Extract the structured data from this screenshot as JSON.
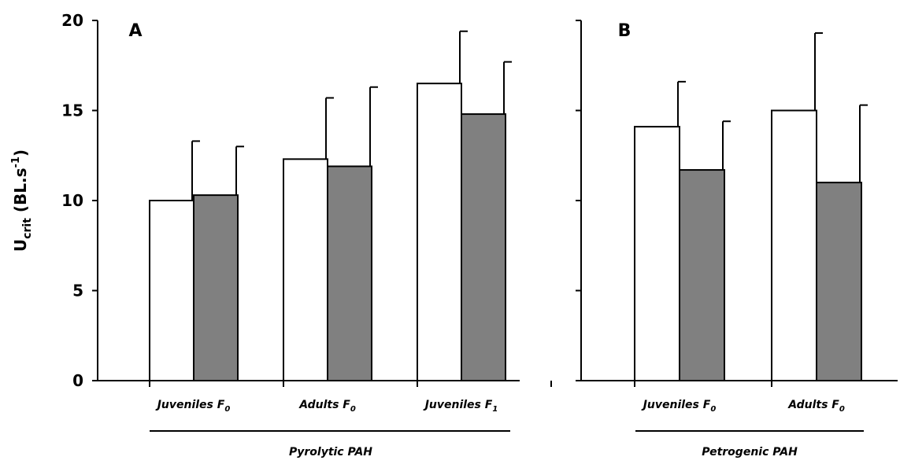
{
  "chart_data": [
    {
      "type": "bar",
      "panel": "A",
      "group_label": "Pyrolytic PAH",
      "categories": [
        {
          "name": "Juveniles F",
          "sub": "0"
        },
        {
          "name": "Adults F",
          "sub": "0"
        },
        {
          "name": "Juveniles F",
          "sub": "1"
        }
      ],
      "series": [
        {
          "color": "#ffffff",
          "values": [
            10.0,
            12.3,
            16.5
          ],
          "errors": [
            3.3,
            3.4,
            2.9
          ]
        },
        {
          "color": "#808080",
          "values": [
            10.3,
            11.9,
            14.8
          ],
          "errors": [
            2.7,
            4.4,
            2.9
          ]
        }
      ],
      "ylabel": {
        "main": "U",
        "sub": "crit",
        "unit": " (BL.s",
        "sup": "-1",
        "close": ")"
      },
      "ylim": [
        0,
        20
      ],
      "yticks": [
        "0",
        "5",
        "10",
        "15",
        "20"
      ]
    },
    {
      "type": "bar",
      "panel": "B",
      "group_label": "Petrogenic PAH",
      "categories": [
        {
          "name": "Juveniles F",
          "sub": "0"
        },
        {
          "name": "Adults F",
          "sub": "0"
        }
      ],
      "series": [
        {
          "color": "#ffffff",
          "values": [
            14.1,
            15.0
          ],
          "errors": [
            2.5,
            4.3
          ]
        },
        {
          "color": "#808080",
          "values": [
            11.7,
            11.0
          ],
          "errors": [
            2.7,
            4.3
          ]
        }
      ],
      "ylim": [
        0,
        20
      ]
    }
  ]
}
